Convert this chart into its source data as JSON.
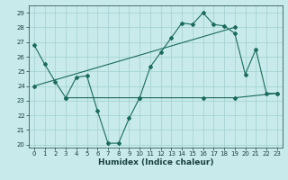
{
  "xlabel": "Humidex (Indice chaleur)",
  "bg_color": "#c8eaea",
  "grid_color": "#a0d0d0",
  "line_color": "#1a6b5a",
  "xlim": [
    -0.5,
    23.5
  ],
  "ylim": [
    19.8,
    29.5
  ],
  "xticks": [
    0,
    1,
    2,
    3,
    4,
    5,
    6,
    7,
    8,
    9,
    10,
    11,
    12,
    13,
    14,
    15,
    16,
    17,
    18,
    19,
    20,
    21,
    22,
    23
  ],
  "yticks": [
    20,
    21,
    22,
    23,
    24,
    25,
    26,
    27,
    28,
    29
  ],
  "series1_x": [
    0,
    1,
    2,
    3,
    4,
    5,
    6,
    7,
    8,
    9,
    10,
    11,
    12,
    13,
    14,
    15,
    16,
    17,
    18,
    19,
    20,
    21,
    22,
    23
  ],
  "series1_y": [
    26.8,
    25.5,
    24.3,
    23.2,
    24.6,
    24.7,
    22.3,
    20.1,
    20.1,
    21.8,
    23.2,
    25.3,
    26.3,
    27.3,
    28.3,
    28.2,
    29.0,
    28.2,
    28.1,
    27.6,
    24.8,
    26.5,
    23.5,
    23.5
  ],
  "series2_x": [
    3,
    10,
    16,
    19,
    23
  ],
  "series2_y": [
    23.2,
    23.2,
    23.2,
    23.2,
    23.5
  ],
  "series3_x": [
    0,
    19
  ],
  "series3_y": [
    24.0,
    28.0
  ]
}
